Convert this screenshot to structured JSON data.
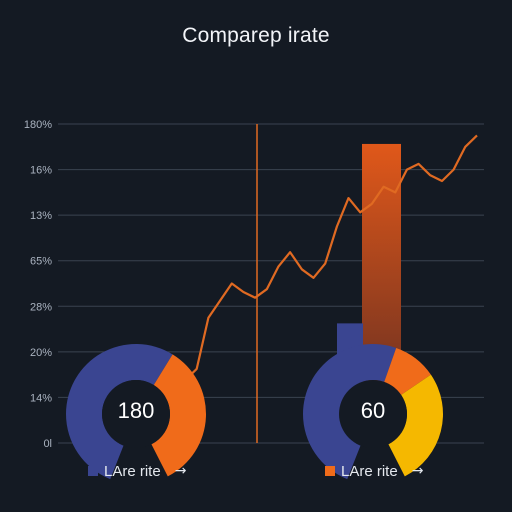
{
  "chart_data": {
    "type": "line",
    "title": "Comparep irate",
    "y_tick_labels": [
      "0l",
      "14%",
      "20%",
      "28%",
      "65%",
      "13%",
      "16%",
      "180%"
    ],
    "series": [
      {
        "values": [
          10,
          12,
          22,
          22,
          26,
          44,
          50,
          56,
          53,
          51,
          54,
          62,
          67,
          61,
          58,
          63,
          76,
          86,
          81,
          84,
          90,
          88,
          96,
          98,
          94,
          92,
          96,
          104,
          108
        ]
      }
    ],
    "bars": [
      {
        "value": 105,
        "color": "#d9531f"
      },
      {
        "value": 42,
        "color": "#3a4591"
      }
    ],
    "gauges": [
      {
        "value_label": "180",
        "segments": [
          {
            "fraction": 0.5,
            "color": "#3a4591"
          },
          {
            "fraction": 0.5,
            "color": "#f06b1a"
          }
        ]
      },
      {
        "value_label": "60",
        "segments": [
          {
            "fraction": 0.45,
            "color": "#3a4591"
          },
          {
            "fraction": 0.15,
            "color": "#f06b1a"
          },
          {
            "fraction": 0.4,
            "color": "#f5b800"
          }
        ]
      }
    ],
    "ylim": [
      0,
      112
    ],
    "grid": true,
    "colors": {
      "line": "#e06a22",
      "divider": "#e06a22",
      "grid": "#3a4350",
      "background": "#141a23"
    }
  },
  "legend": [
    {
      "label": "LAre rite",
      "arrow": "→",
      "color": "#3a4591"
    },
    {
      "label": "LAre rite",
      "arrow": "→",
      "color": "#f06b1a"
    }
  ]
}
